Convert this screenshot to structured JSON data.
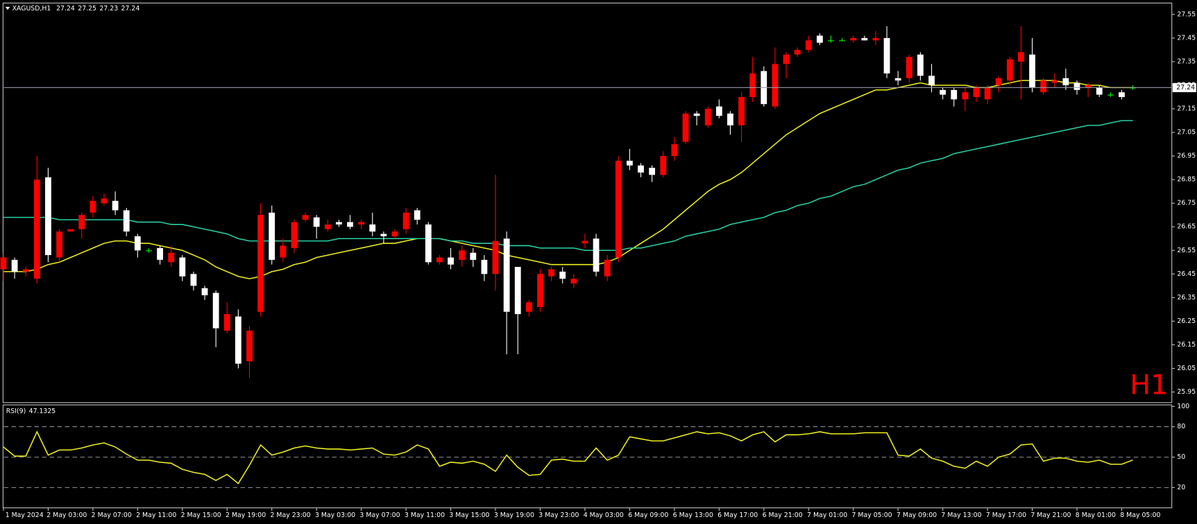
{
  "chart_data": {
    "type": "candlestick",
    "header_symbol": "XAGUSD,H1",
    "timeframe_label": "H1",
    "up_color": "#ff0000",
    "down_color": "#ffffff",
    "doji_color": "#00ff00",
    "price_line_color": "#9a9aa8",
    "categories": [
      "1 May 2024",
      null,
      null,
      null,
      "2 May 03:00",
      null,
      null,
      null,
      "2 May 07:00",
      null,
      null,
      null,
      "2 May 11:00",
      null,
      null,
      null,
      "2 May 15:00",
      null,
      null,
      null,
      "2 May 19:00",
      null,
      null,
      null,
      "2 May 23:00",
      null,
      null,
      null,
      "3 May 03:00",
      null,
      null,
      null,
      "3 May 07:00",
      null,
      null,
      null,
      "3 May 11:00",
      null,
      null,
      null,
      "3 May 15:00",
      null,
      null,
      null,
      "3 May 19:00",
      null,
      null,
      null,
      "3 May 23:00",
      null,
      null,
      null,
      "4 May 03:00",
      null,
      null,
      null,
      "6 May 09:00",
      null,
      null,
      null,
      "6 May 13:00",
      null,
      null,
      null,
      "6 May 17:00",
      null,
      null,
      null,
      "6 May 21:00",
      null,
      null,
      null,
      "7 May 01:00",
      null,
      null,
      null,
      "7 May 05:00",
      null,
      null,
      null,
      "7 May 09:00",
      null,
      null,
      null,
      "7 May 13:00",
      null,
      null,
      null,
      "7 May 17:00",
      null,
      null,
      null,
      "7 May 21:00",
      null,
      null,
      null,
      "8 May 01:00",
      null,
      null,
      null,
      "8 May 05:00",
      null
    ],
    "open": [
      26.47,
      26.51,
      26.46,
      26.43,
      26.86,
      26.52,
      26.63,
      26.64,
      26.71,
      26.75,
      26.76,
      26.72,
      26.61,
      26.55,
      26.56,
      26.5,
      26.52,
      26.45,
      26.39,
      26.37,
      26.21,
      26.27,
      26.08,
      26.29,
      26.71,
      26.52,
      26.56,
      26.68,
      26.69,
      26.64,
      26.67,
      26.67,
      26.66,
      26.66,
      26.62,
      26.61,
      26.64,
      26.72,
      26.66,
      26.5,
      26.52,
      26.51,
      26.54,
      26.51,
      26.45,
      26.6,
      26.48,
      26.29,
      26.31,
      26.44,
      26.46,
      26.41,
      26.58,
      26.6,
      26.44,
      26.52,
      26.93,
      26.91,
      26.9,
      26.87,
      26.95,
      27.01,
      27.13,
      27.08,
      27.16,
      27.13,
      27.08,
      27.2,
      27.31,
      27.16,
      27.34,
      27.38,
      27.4,
      27.46,
      27.44,
      27.44,
      27.44,
      27.45,
      27.44,
      27.45,
      27.28,
      27.28,
      27.38,
      27.29,
      27.23,
      27.23,
      27.19,
      27.2,
      27.19,
      27.25,
      27.27,
      27.35,
      27.38,
      27.22,
      27.26,
      27.28,
      27.26,
      27.24,
      27.24,
      27.21,
      27.22,
      27.24
    ],
    "high": [
      26.54,
      26.52,
      26.48,
      26.95,
      26.9,
      26.64,
      26.64,
      26.71,
      26.78,
      26.79,
      26.8,
      26.73,
      26.62,
      26.56,
      26.57,
      26.57,
      26.53,
      26.46,
      26.4,
      26.38,
      26.33,
      26.3,
      26.23,
      26.75,
      26.74,
      26.6,
      26.68,
      26.71,
      26.7,
      26.68,
      26.68,
      26.7,
      26.68,
      26.71,
      26.63,
      26.64,
      26.73,
      26.73,
      26.67,
      26.53,
      26.56,
      26.57,
      26.56,
      26.53,
      26.87,
      26.63,
      26.48,
      26.34,
      26.47,
      26.48,
      26.48,
      26.45,
      26.62,
      26.62,
      26.53,
      26.95,
      26.98,
      26.92,
      26.91,
      26.97,
      27.03,
      27.14,
      27.14,
      27.16,
      27.19,
      27.14,
      27.22,
      27.37,
      27.33,
      27.41,
      27.39,
      27.41,
      27.46,
      27.47,
      27.46,
      27.45,
      27.46,
      27.46,
      27.48,
      27.5,
      27.31,
      27.38,
      27.39,
      27.34,
      27.24,
      27.24,
      27.24,
      27.25,
      27.25,
      27.29,
      27.37,
      27.5,
      27.45,
      27.28,
      27.3,
      27.32,
      27.27,
      27.26,
      27.25,
      27.22,
      27.23,
      27.25
    ],
    "low": [
      26.42,
      26.43,
      26.44,
      26.41,
      26.5,
      26.5,
      26.63,
      26.6,
      26.69,
      26.74,
      26.7,
      26.61,
      26.52,
      26.54,
      26.49,
      26.48,
      26.42,
      26.38,
      26.34,
      26.14,
      26.2,
      26.05,
      26.01,
      26.27,
      26.49,
      26.5,
      26.54,
      26.67,
      26.6,
      26.63,
      26.65,
      26.64,
      26.64,
      26.61,
      26.58,
      26.6,
      26.62,
      26.66,
      26.49,
      26.49,
      26.47,
      26.48,
      26.48,
      26.42,
      26.38,
      26.11,
      26.11,
      26.27,
      26.29,
      26.42,
      26.41,
      26.39,
      26.56,
      26.44,
      26.42,
      26.5,
      26.89,
      26.86,
      26.84,
      26.86,
      26.93,
      27.0,
      27.08,
      27.07,
      27.11,
      27.04,
      27.01,
      27.18,
      27.16,
      27.15,
      27.28,
      27.37,
      27.39,
      27.42,
      27.43,
      27.44,
      27.43,
      27.44,
      27.42,
      27.28,
      27.25,
      27.26,
      27.27,
      27.22,
      27.19,
      27.16,
      27.14,
      27.18,
      27.17,
      27.22,
      27.25,
      27.19,
      27.22,
      27.21,
      27.24,
      27.23,
      27.21,
      27.2,
      27.2,
      27.2,
      27.19,
      27.23
    ],
    "close": [
      26.52,
      26.46,
      26.47,
      26.85,
      26.53,
      26.63,
      26.64,
      26.7,
      26.76,
      26.77,
      26.72,
      26.63,
      26.55,
      26.55,
      26.51,
      26.54,
      26.44,
      26.4,
      26.36,
      26.22,
      26.28,
      26.07,
      26.21,
      26.7,
      26.51,
      26.57,
      26.67,
      26.7,
      26.65,
      26.66,
      26.66,
      26.65,
      26.67,
      26.63,
      26.61,
      26.63,
      26.71,
      26.68,
      26.5,
      26.52,
      26.49,
      26.55,
      26.51,
      26.45,
      26.59,
      26.29,
      26.28,
      26.33,
      26.45,
      26.47,
      26.43,
      26.43,
      26.59,
      26.46,
      26.51,
      26.93,
      26.91,
      26.88,
      26.87,
      26.95,
      27.0,
      27.13,
      27.12,
      27.15,
      27.12,
      27.08,
      27.2,
      27.3,
      27.17,
      27.34,
      27.38,
      27.4,
      27.44,
      27.43,
      27.44,
      27.44,
      27.45,
      27.44,
      27.45,
      27.3,
      27.27,
      27.37,
      27.29,
      27.25,
      27.21,
      27.19,
      27.22,
      27.24,
      27.24,
      27.28,
      27.36,
      27.39,
      27.24,
      27.27,
      27.27,
      27.25,
      27.23,
      27.25,
      27.21,
      27.21,
      27.2,
      27.24
    ],
    "moving_averages": [
      {
        "color": "#f0f020",
        "values": [
          26.46,
          26.46,
          26.46,
          26.47,
          26.49,
          26.5,
          26.52,
          26.54,
          26.56,
          26.58,
          26.59,
          26.59,
          26.58,
          26.58,
          26.57,
          26.56,
          26.55,
          26.53,
          26.51,
          26.48,
          26.46,
          26.44,
          26.43,
          26.44,
          26.46,
          26.47,
          26.49,
          26.5,
          26.52,
          26.53,
          26.54,
          26.55,
          26.56,
          26.57,
          26.58,
          26.58,
          26.59,
          26.6,
          26.6,
          26.6,
          26.59,
          26.58,
          26.57,
          26.56,
          26.55,
          26.53,
          26.52,
          26.51,
          26.5,
          26.49,
          26.49,
          26.49,
          26.49,
          26.49,
          26.5,
          26.52,
          26.55,
          26.58,
          26.61,
          26.64,
          26.68,
          26.72,
          26.76,
          26.8,
          26.83,
          26.85,
          26.88,
          26.92,
          26.96,
          27.0,
          27.04,
          27.07,
          27.1,
          27.13,
          27.15,
          27.17,
          27.19,
          27.21,
          27.23,
          27.23,
          27.24,
          27.25,
          27.26,
          27.25,
          27.25,
          27.25,
          27.25,
          27.24,
          27.24,
          27.25,
          27.26,
          27.27,
          27.27,
          27.27,
          27.27,
          27.26,
          27.26,
          27.25,
          27.25,
          27.24,
          27.24,
          27.24
        ]
      },
      {
        "color": "#28d2a5",
        "values": [
          26.69,
          26.69,
          26.69,
          26.69,
          26.69,
          26.68,
          26.68,
          26.68,
          26.68,
          26.68,
          26.68,
          26.68,
          26.67,
          26.67,
          26.67,
          26.66,
          26.66,
          26.65,
          26.64,
          26.63,
          26.62,
          26.6,
          26.59,
          26.59,
          26.59,
          26.59,
          26.59,
          26.59,
          26.59,
          26.59,
          26.6,
          26.6,
          26.6,
          26.6,
          26.6,
          26.6,
          26.6,
          26.6,
          26.6,
          26.6,
          26.59,
          26.59,
          26.58,
          26.58,
          26.58,
          26.57,
          26.57,
          26.57,
          26.56,
          26.56,
          26.56,
          26.56,
          26.55,
          26.55,
          26.55,
          26.55,
          26.56,
          26.56,
          26.57,
          26.58,
          26.59,
          26.61,
          26.62,
          26.63,
          26.64,
          26.66,
          26.67,
          26.68,
          26.69,
          26.71,
          26.72,
          26.74,
          26.75,
          26.77,
          26.78,
          26.8,
          26.82,
          26.83,
          26.85,
          26.87,
          26.89,
          26.9,
          26.92,
          26.93,
          26.94,
          26.96,
          26.97,
          26.98,
          26.99,
          27.0,
          27.01,
          27.02,
          27.03,
          27.04,
          27.05,
          27.06,
          27.07,
          27.08,
          27.08,
          27.09,
          27.1,
          27.1
        ]
      }
    ],
    "ylim": [
      25.905,
      27.595
    ],
    "yticks": [
      27.55,
      27.45,
      27.35,
      27.25,
      27.15,
      27.05,
      26.95,
      26.85,
      26.75,
      26.65,
      26.55,
      26.45,
      26.35,
      26.25,
      26.15,
      26.05,
      25.95
    ],
    "rsi": {
      "label": "RSI(9)",
      "color": "#f0f020",
      "level_color": "#a0a0a0",
      "values": [
        60,
        51,
        51,
        75,
        52,
        57,
        57,
        59,
        62,
        64,
        60,
        53,
        47,
        47,
        45,
        44,
        38,
        35,
        33,
        27,
        33,
        24,
        42,
        62,
        52,
        55,
        59,
        61,
        59,
        58,
        58,
        57,
        58,
        59,
        53,
        52,
        55,
        62,
        58,
        41,
        45,
        44,
        46,
        43,
        36,
        52,
        40,
        32,
        33,
        47,
        48,
        46,
        46,
        59,
        47,
        52,
        70,
        68,
        66,
        66,
        69,
        72,
        75,
        73,
        74,
        71,
        66,
        72,
        75,
        65,
        72,
        72,
        73,
        75,
        73,
        73,
        73,
        74,
        74,
        74,
        52,
        51,
        58,
        49,
        46,
        41,
        39,
        46,
        41,
        50,
        53,
        62,
        63,
        46,
        49,
        49,
        46,
        45,
        47,
        43,
        43,
        47.1325
      ],
      "ylim": [
        0,
        100
      ],
      "yticks": [
        100,
        80,
        50,
        20
      ]
    }
  }
}
